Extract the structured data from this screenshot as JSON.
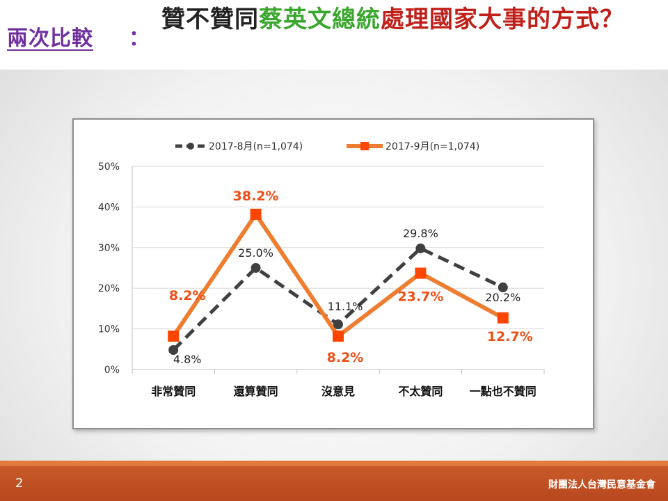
{
  "header": {
    "section_label": "兩次比較",
    "section_colon": "：",
    "title_part1": "贊不贊同",
    "title_part2": "蔡英文總統",
    "title_part3": "處理國家大事的方式？"
  },
  "footer": {
    "page_number": "2",
    "org_name": "財團法人台灣民意基金會"
  },
  "colors": {
    "series1": "#404040",
    "series2": "#ed7d31",
    "series1_label": "#222222",
    "series2_label": "#ee4e16",
    "grid": "#d9d9d9",
    "footer": "#b8481d"
  },
  "chart_data": {
    "type": "line",
    "categories": [
      "非常贊同",
      "還算贊同",
      "沒意見",
      "不太贊同",
      "一點也不贊同"
    ],
    "ylim": [
      0,
      50
    ],
    "yticks": [
      0,
      10,
      20,
      30,
      40,
      50
    ],
    "ytick_labels": [
      "0%",
      "10%",
      "20%",
      "30%",
      "40%",
      "50%"
    ],
    "grid": true,
    "legend_position": "top",
    "series": [
      {
        "name": "2017-8月(n=1,074)",
        "values": [
          4.8,
          25.0,
          11.1,
          29.8,
          20.2
        ],
        "labels": [
          "4.8%",
          "25.0%",
          "11.1%",
          "29.8%",
          "20.2%"
        ],
        "style": "dashed",
        "marker": "circle"
      },
      {
        "name": "2017-9月(n=1,074)",
        "values": [
          8.2,
          38.2,
          8.2,
          23.7,
          12.7
        ],
        "labels": [
          "8.2%",
          "38.2%",
          "8.2%",
          "23.7%",
          "12.7%"
        ],
        "style": "solid",
        "marker": "square"
      }
    ]
  }
}
